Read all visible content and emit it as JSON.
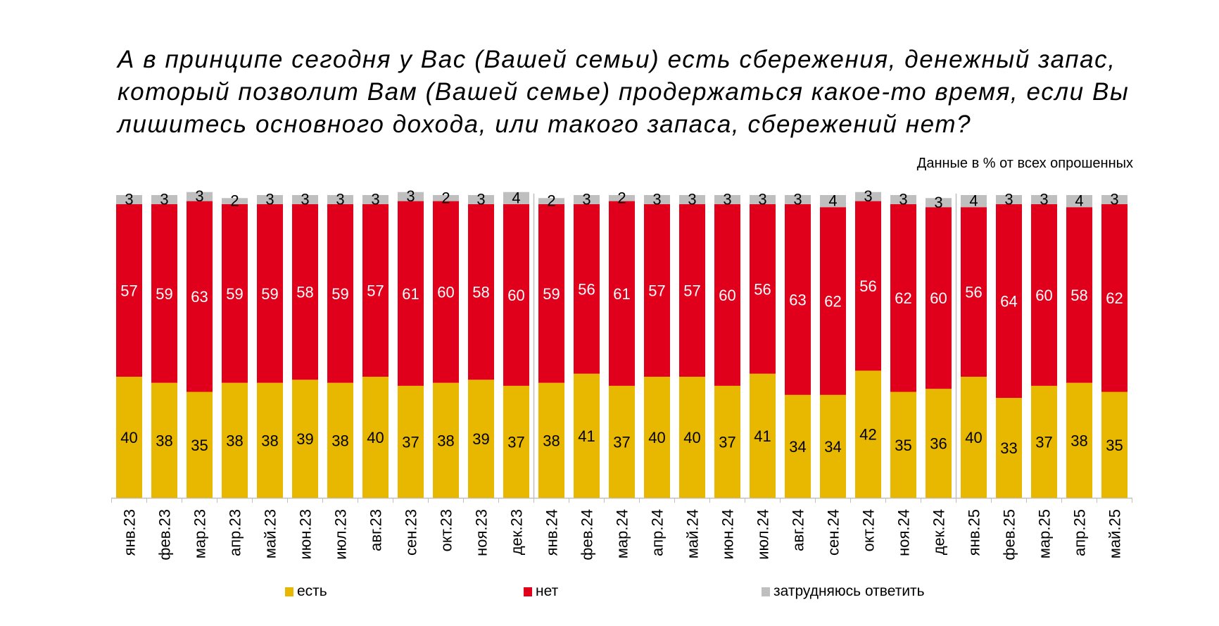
{
  "title_lines": [
    "А в принципе сегодня у Вас (Вашей семьи) есть сбережения, денежный запас,",
    "который позволит Вам (Вашей семье) продержаться какое-то время, если Вы",
    "лишитесь основного дохода, или такого запаса, сбережений нет?"
  ],
  "note": "Данные в % от всех опрошенных",
  "chart_data": {
    "type": "bar",
    "stacked": true,
    "title": "А в принципе сегодня у Вас (Вашей семьи) есть сбережения, денежный запас, который позволит Вам (Вашей семье) продержаться какое-то время, если Вы лишитесь основного дохода, или такого запаса, сбережений нет?",
    "categories": [
      "янв.23",
      "фев.23",
      "мар.23",
      "апр.23",
      "май.23",
      "июн.23",
      "июл.23",
      "авг.23",
      "сен.23",
      "окт.23",
      "ноя.23",
      "дек.23",
      "янв.24",
      "фев.24",
      "мар.24",
      "апр.24",
      "май.24",
      "июн.24",
      "июл.24",
      "авг.24",
      "сен.24",
      "окт.24",
      "ноя.24",
      "дек.24",
      "янв.25",
      "фев.25",
      "мар.25",
      "апр.25",
      "май.25"
    ],
    "series": [
      {
        "name": "есть",
        "color": "#E8B800",
        "values": [
          40,
          38,
          35,
          38,
          38,
          39,
          38,
          40,
          37,
          38,
          39,
          37,
          38,
          41,
          37,
          40,
          40,
          37,
          41,
          34,
          34,
          42,
          35,
          36,
          40,
          33,
          37,
          38,
          35
        ]
      },
      {
        "name": "нет",
        "color": "#E0001B",
        "values": [
          57,
          59,
          63,
          59,
          59,
          58,
          59,
          57,
          61,
          60,
          58,
          60,
          59,
          56,
          61,
          57,
          57,
          60,
          56,
          63,
          62,
          56,
          62,
          60,
          56,
          64,
          60,
          58,
          62
        ]
      },
      {
        "name": "затрудняюсь ответить",
        "color": "#BFBFBF",
        "values": [
          3,
          3,
          3,
          2,
          3,
          3,
          3,
          3,
          3,
          2,
          3,
          4,
          2,
          3,
          2,
          3,
          3,
          3,
          3,
          3,
          4,
          3,
          3,
          3,
          4,
          3,
          3,
          4,
          3
        ]
      }
    ],
    "label_colors": [
      "#000000",
      "#FFFFFF",
      "#000000"
    ],
    "ylim": [
      0,
      100
    ],
    "grid": false,
    "legend": "bottom",
    "year_separators_after": [
      "дек.23",
      "дек.24"
    ],
    "xlabel": "",
    "ylabel": ""
  }
}
